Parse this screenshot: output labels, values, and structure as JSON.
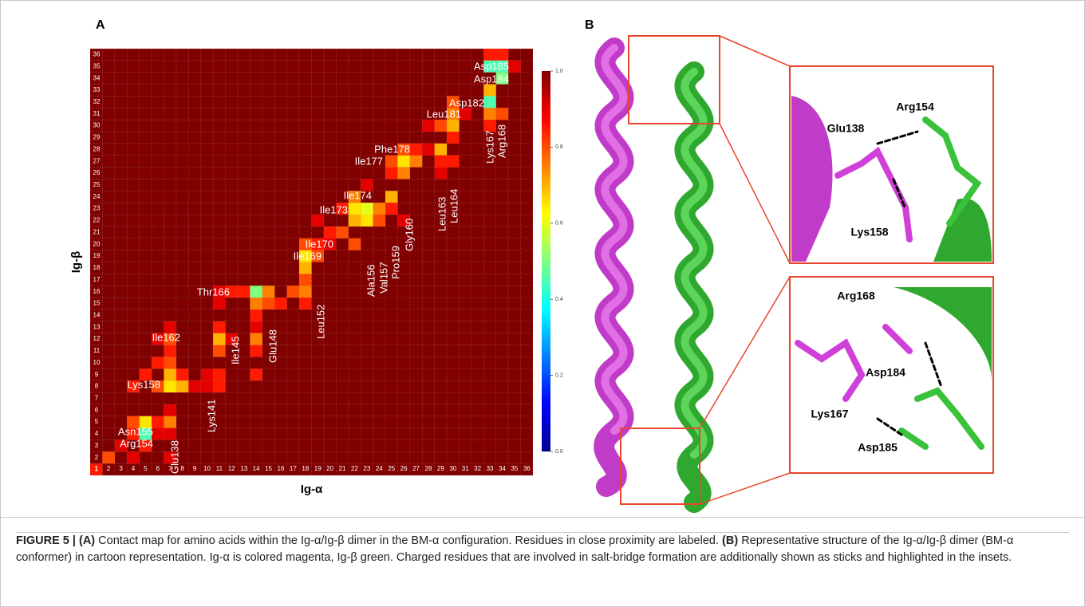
{
  "chart_data": {
    "type": "heatmap",
    "panel": "A",
    "xlabel": "Ig-α",
    "ylabel": "Ig-β",
    "xticks": [
      1,
      2,
      3,
      4,
      5,
      6,
      7,
      8,
      9,
      10,
      11,
      12,
      13,
      14,
      15,
      16,
      17,
      18,
      19,
      20,
      21,
      22,
      23,
      24,
      25,
      26,
      27,
      28,
      29,
      30,
      31,
      32,
      33,
      34,
      35,
      36
    ],
    "yticks": [
      1,
      2,
      3,
      4,
      5,
      6,
      7,
      8,
      9,
      10,
      11,
      12,
      13,
      14,
      15,
      16,
      17,
      18,
      19,
      20,
      21,
      22,
      23,
      24,
      25,
      26,
      27,
      28,
      29,
      30,
      31,
      32,
      33,
      34,
      35,
      36
    ],
    "clim": [
      0,
      1
    ],
    "cticks": [
      {
        "value": 0,
        "label": "0.0"
      },
      0.2,
      0.4,
      0.6,
      0.8,
      {
        "value": 1,
        "label": "1.0"
      }
    ],
    "colormap": "jet",
    "cells": [
      {
        "x": 1,
        "y": 1,
        "value": 0.85
      },
      {
        "x": 2,
        "y": 2,
        "value": 0.8
      },
      {
        "x": 3,
        "y": 3,
        "value": 0.9
      },
      {
        "x": 4,
        "y": 2,
        "value": 0.9
      },
      {
        "x": 5,
        "y": 4,
        "value": 0.45
      },
      {
        "x": 5,
        "y": 5,
        "value": 0.65
      },
      {
        "x": 5,
        "y": 3,
        "value": 0.85
      },
      {
        "x": 4,
        "y": 4,
        "value": 0.85
      },
      {
        "x": 4,
        "y": 5,
        "value": 0.8
      },
      {
        "x": 6,
        "y": 5,
        "value": 0.85
      },
      {
        "x": 7,
        "y": 5,
        "value": 0.75
      },
      {
        "x": 7,
        "y": 4,
        "value": 0.9
      },
      {
        "x": 7,
        "y": 6,
        "value": 0.9
      },
      {
        "x": 6,
        "y": 4,
        "value": 0.9
      },
      {
        "x": 7,
        "y": 2,
        "value": 0.9
      },
      {
        "x": 4,
        "y": 8,
        "value": 0.85
      },
      {
        "x": 5,
        "y": 9,
        "value": 0.85
      },
      {
        "x": 6,
        "y": 8,
        "value": 0.8
      },
      {
        "x": 7,
        "y": 8,
        "value": 0.65
      },
      {
        "x": 7,
        "y": 9,
        "value": 0.7
      },
      {
        "x": 8,
        "y": 8,
        "value": 0.7
      },
      {
        "x": 7,
        "y": 10,
        "value": 0.8
      },
      {
        "x": 6,
        "y": 10,
        "value": 0.85
      },
      {
        "x": 8,
        "y": 9,
        "value": 0.85
      },
      {
        "x": 9,
        "y": 8,
        "value": 0.9
      },
      {
        "x": 10,
        "y": 8,
        "value": 0.9
      },
      {
        "x": 11,
        "y": 9,
        "value": 0.85
      },
      {
        "x": 11,
        "y": 8,
        "value": 0.85
      },
      {
        "x": 10,
        "y": 9,
        "value": 0.9
      },
      {
        "x": 7,
        "y": 11,
        "value": 0.85
      },
      {
        "x": 7,
        "y": 12,
        "value": 0.8
      },
      {
        "x": 7,
        "y": 13,
        "value": 0.9
      },
      {
        "x": 6,
        "y": 12,
        "value": 0.9
      },
      {
        "x": 11,
        "y": 12,
        "value": 0.7
      },
      {
        "x": 11,
        "y": 11,
        "value": 0.8
      },
      {
        "x": 11,
        "y": 13,
        "value": 0.85
      },
      {
        "x": 12,
        "y": 12,
        "value": 0.9
      },
      {
        "x": 11,
        "y": 15,
        "value": 0.9
      },
      {
        "x": 11,
        "y": 16,
        "value": 0.9
      },
      {
        "x": 12,
        "y": 16,
        "value": 0.85
      },
      {
        "x": 13,
        "y": 16,
        "value": 0.85
      },
      {
        "x": 14,
        "y": 16,
        "value": 0.5
      },
      {
        "x": 14,
        "y": 15,
        "value": 0.75
      },
      {
        "x": 15,
        "y": 16,
        "value": 0.75
      },
      {
        "x": 15,
        "y": 15,
        "value": 0.8
      },
      {
        "x": 16,
        "y": 15,
        "value": 0.85
      },
      {
        "x": 14,
        "y": 13,
        "value": 0.9
      },
      {
        "x": 14,
        "y": 12,
        "value": 0.75
      },
      {
        "x": 14,
        "y": 11,
        "value": 0.85
      },
      {
        "x": 14,
        "y": 9,
        "value": 0.85
      },
      {
        "x": 14,
        "y": 14,
        "value": 0.85
      },
      {
        "x": 17,
        "y": 16,
        "value": 0.8
      },
      {
        "x": 18,
        "y": 16,
        "value": 0.75
      },
      {
        "x": 18,
        "y": 17,
        "value": 0.8
      },
      {
        "x": 18,
        "y": 15,
        "value": 0.85
      },
      {
        "x": 18,
        "y": 18,
        "value": 0.7
      },
      {
        "x": 18,
        "y": 19,
        "value": 0.65
      },
      {
        "x": 19,
        "y": 19,
        "value": 0.8
      },
      {
        "x": 19,
        "y": 20,
        "value": 0.85
      },
      {
        "x": 18,
        "y": 20,
        "value": 0.8
      },
      {
        "x": 19,
        "y": 22,
        "value": 0.9
      },
      {
        "x": 20,
        "y": 21,
        "value": 0.85
      },
      {
        "x": 20,
        "y": 20,
        "value": 0.9
      },
      {
        "x": 21,
        "y": 23,
        "value": 0.85
      },
      {
        "x": 21,
        "y": 21,
        "value": 0.8
      },
      {
        "x": 22,
        "y": 22,
        "value": 0.7
      },
      {
        "x": 22,
        "y": 20,
        "value": 0.8
      },
      {
        "x": 22,
        "y": 23,
        "value": 0.65
      },
      {
        "x": 22,
        "y": 24,
        "value": 0.75
      },
      {
        "x": 23,
        "y": 23,
        "value": 0.6
      },
      {
        "x": 23,
        "y": 22,
        "value": 0.65
      },
      {
        "x": 24,
        "y": 23,
        "value": 0.75
      },
      {
        "x": 24,
        "y": 22,
        "value": 0.8
      },
      {
        "x": 23,
        "y": 25,
        "value": 0.9
      },
      {
        "x": 25,
        "y": 24,
        "value": 0.7
      },
      {
        "x": 25,
        "y": 23,
        "value": 0.85
      },
      {
        "x": 26,
        "y": 22,
        "value": 0.9
      },
      {
        "x": 25,
        "y": 26,
        "value": 0.85
      },
      {
        "x": 25,
        "y": 27,
        "value": 0.8
      },
      {
        "x": 26,
        "y": 27,
        "value": 0.65
      },
      {
        "x": 26,
        "y": 26,
        "value": 0.75
      },
      {
        "x": 26,
        "y": 28,
        "value": 0.8
      },
      {
        "x": 27,
        "y": 27,
        "value": 0.75
      },
      {
        "x": 27,
        "y": 28,
        "value": 0.85
      },
      {
        "x": 28,
        "y": 28,
        "value": 0.9
      },
      {
        "x": 29,
        "y": 28,
        "value": 0.7
      },
      {
        "x": 29,
        "y": 27,
        "value": 0.85
      },
      {
        "x": 30,
        "y": 29,
        "value": 0.85
      },
      {
        "x": 30,
        "y": 30,
        "value": 0.7
      },
      {
        "x": 30,
        "y": 31,
        "value": 0.75
      },
      {
        "x": 29,
        "y": 30,
        "value": 0.8
      },
      {
        "x": 30,
        "y": 32,
        "value": 0.8
      },
      {
        "x": 31,
        "y": 31,
        "value": 0.9
      },
      {
        "x": 28,
        "y": 30,
        "value": 0.9
      },
      {
        "x": 30,
        "y": 27,
        "value": 0.85
      },
      {
        "x": 29,
        "y": 26,
        "value": 0.9
      },
      {
        "x": 33,
        "y": 36,
        "value": 0.85
      },
      {
        "x": 34,
        "y": 36,
        "value": 0.85
      },
      {
        "x": 33,
        "y": 35,
        "value": 0.45
      },
      {
        "x": 34,
        "y": 35,
        "value": 0.45
      },
      {
        "x": 34,
        "y": 34,
        "value": 0.5
      },
      {
        "x": 33,
        "y": 33,
        "value": 0.7
      },
      {
        "x": 33,
        "y": 32,
        "value": 0.45
      },
      {
        "x": 33,
        "y": 31,
        "value": 0.75
      },
      {
        "x": 34,
        "y": 31,
        "value": 0.8
      },
      {
        "x": 35,
        "y": 35,
        "value": 0.9
      },
      {
        "x": 33,
        "y": 30,
        "value": 0.85
      }
    ],
    "annotations": [
      "Asp185",
      "Asp184",
      "Asp182",
      "Leu181",
      "Phe178",
      "Ile177",
      "Ile174",
      "Ile173",
      "Ile170",
      "Ile169",
      "Thr166",
      "Ile162",
      "Lys158",
      "Asn155",
      "Arg154",
      "Arg168",
      "Lys167",
      "Leu164",
      "Leu163",
      "Gly160",
      "Pro159",
      "Val157",
      "Ala156",
      "Leu152",
      "Glu148",
      "Ile145",
      "Lys141",
      "Glu138"
    ]
  },
  "panel_b": {
    "panel": "B",
    "top_inset_labels": [
      "Arg154",
      "Glu138",
      "Lys158"
    ],
    "bottom_inset_labels": [
      "Arg168",
      "Asp184",
      "Lys167",
      "Asp185"
    ]
  },
  "caption": [
    "FIGURE 5 | (A)",
    " Contact map for amino acids within the Ig-α/Ig-β dimer in the BM-α configuration. Residues in close proximity are labeled. ",
    "(B)",
    " Representative structure of the Ig-α/Ig-β dimer (BM-α conformer) in cartoon representation. Ig-α is colored magenta, Ig-β green. Charged residues that are involved in salt-bridge formation are additionally shown as sticks and highlighted in the insets."
  ]
}
